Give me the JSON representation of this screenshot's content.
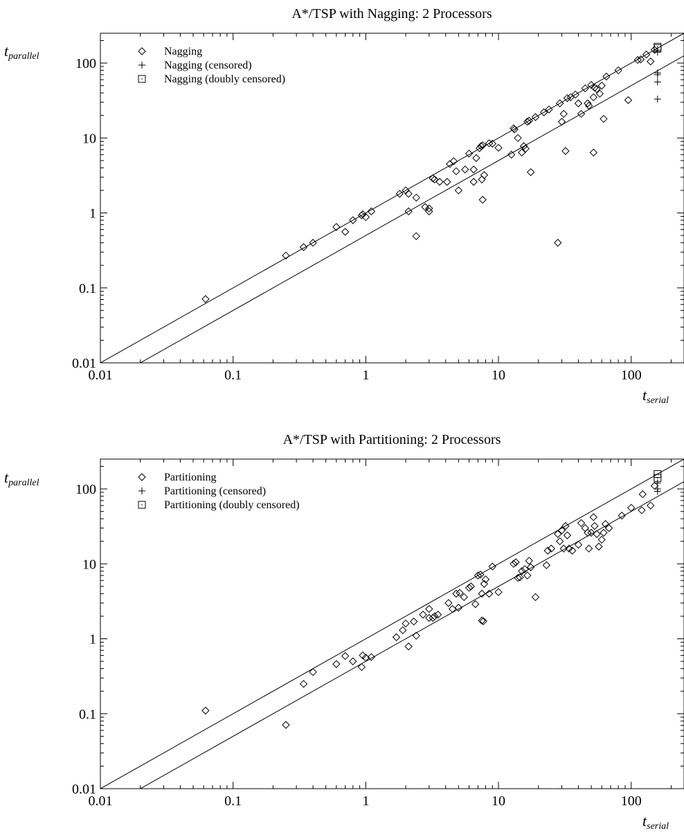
{
  "chart_data": [
    {
      "type": "scatter",
      "title": "A*/TSP with Nagging: 2 Processors",
      "xlabel": "t",
      "xlabel_sub": "serial",
      "ylabel": "t",
      "ylabel_sub": "parallel",
      "xscale": "log",
      "yscale": "log",
      "xlim": [
        0.01,
        250
      ],
      "ylim": [
        0.01,
        250
      ],
      "xticks": [
        "0.01",
        "0.1",
        "1",
        "10",
        "100"
      ],
      "yticks": [
        "0.01",
        "0.1",
        "1",
        "10",
        "100"
      ],
      "grid": false,
      "legend_position": "top-left",
      "reference_lines": [
        {
          "slope": 1,
          "intercept_factor": 1.0
        },
        {
          "slope": 1,
          "intercept_factor": 0.5
        }
      ],
      "series": [
        {
          "name": "Nagging",
          "marker": "diamond",
          "points": [
            [
              0.062,
              0.071
            ],
            [
              0.25,
              0.27
            ],
            [
              0.34,
              0.35
            ],
            [
              0.4,
              0.4
            ],
            [
              0.6,
              0.65
            ],
            [
              0.7,
              0.56
            ],
            [
              0.8,
              0.8
            ],
            [
              0.93,
              0.93
            ],
            [
              0.95,
              0.96
            ],
            [
              1.0,
              0.88
            ],
            [
              1.1,
              1.05
            ],
            [
              1.8,
              1.8
            ],
            [
              2.0,
              2.0
            ],
            [
              2.1,
              1.8
            ],
            [
              2.1,
              1.05
            ],
            [
              2.4,
              0.49
            ],
            [
              2.4,
              1.6
            ],
            [
              2.8,
              1.2
            ],
            [
              3.0,
              1.15
            ],
            [
              3.0,
              1.05
            ],
            [
              3.2,
              2.9
            ],
            [
              3.3,
              2.8
            ],
            [
              3.6,
              2.6
            ],
            [
              4.1,
              2.6
            ],
            [
              4.3,
              4.5
            ],
            [
              4.6,
              4.9
            ],
            [
              4.8,
              3.6
            ],
            [
              5.0,
              2.0
            ],
            [
              5.6,
              3.8
            ],
            [
              6.0,
              6.2
            ],
            [
              6.5,
              2.6
            ],
            [
              6.5,
              3.8
            ],
            [
              6.8,
              5.4
            ],
            [
              7.2,
              7.3
            ],
            [
              7.4,
              7.8
            ],
            [
              7.6,
              8.0
            ],
            [
              7.5,
              2.8
            ],
            [
              7.8,
              3.2
            ],
            [
              7.6,
              1.5
            ],
            [
              8.5,
              8.5
            ],
            [
              9.0,
              8.4
            ],
            [
              10.0,
              7.4
            ],
            [
              12.5,
              6.0
            ],
            [
              13.0,
              13.5
            ],
            [
              13.2,
              13.0
            ],
            [
              14.0,
              10.0
            ],
            [
              15.0,
              6.4
            ],
            [
              15.5,
              7.8
            ],
            [
              16.0,
              7.2
            ],
            [
              16.5,
              16.5
            ],
            [
              17.0,
              17.0
            ],
            [
              17.5,
              3.5
            ],
            [
              19.0,
              19.0
            ],
            [
              22.0,
              22.0
            ],
            [
              24.0,
              24.0
            ],
            [
              28.0,
              0.4
            ],
            [
              29.0,
              29.0
            ],
            [
              30.0,
              16.5
            ],
            [
              31.0,
              21.0
            ],
            [
              32.0,
              6.7
            ],
            [
              33.0,
              34.0
            ],
            [
              35.0,
              35.0
            ],
            [
              38.0,
              38.0
            ],
            [
              40.0,
              29.0
            ],
            [
              42.0,
              21.0
            ],
            [
              45.0,
              46.0
            ],
            [
              47.0,
              29.0
            ],
            [
              48.0,
              27.0
            ],
            [
              50.0,
              51.0
            ],
            [
              52.0,
              6.4
            ],
            [
              52.0,
              35.0
            ],
            [
              53.0,
              47.0
            ],
            [
              55.0,
              45.0
            ],
            [
              58.0,
              39.0
            ],
            [
              60.0,
              50.0
            ],
            [
              62.0,
              18.0
            ],
            [
              65.0,
              66.0
            ],
            [
              80.0,
              80.0
            ],
            [
              95.0,
              32.0
            ],
            [
              112.0,
              110.0
            ],
            [
              118.0,
              112.0
            ],
            [
              130.0,
              130.0
            ],
            [
              140.0,
              105.0
            ],
            [
              150.0,
              150.0
            ]
          ]
        },
        {
          "name": "Nagging (censored)",
          "marker": "plus",
          "points": [
            [
              158.0,
              140.0
            ],
            [
              158.0,
              74.0
            ],
            [
              158.0,
              70.0
            ],
            [
              158.0,
              56.0
            ],
            [
              158.0,
              33.0
            ]
          ]
        },
        {
          "name": "Nagging (doubly censored)",
          "marker": "square",
          "points": [
            [
              158.0,
              158.0
            ],
            [
              158.0,
              165.0
            ]
          ]
        }
      ]
    },
    {
      "type": "scatter",
      "title": "A*/TSP with Partitioning: 2 Processors",
      "xlabel": "t",
      "xlabel_sub": "serial",
      "ylabel": "t",
      "ylabel_sub": "parallel",
      "xscale": "log",
      "yscale": "log",
      "xlim": [
        0.01,
        250
      ],
      "ylim": [
        0.01,
        250
      ],
      "xticks": [
        "0.01",
        "0.1",
        "1",
        "10",
        "100"
      ],
      "yticks": [
        "0.01",
        "0.1",
        "1",
        "10",
        "100"
      ],
      "grid": false,
      "legend_position": "top-left",
      "reference_lines": [
        {
          "slope": 1,
          "intercept_factor": 1.0
        },
        {
          "slope": 1,
          "intercept_factor": 0.5
        }
      ],
      "series": [
        {
          "name": "Partitioning",
          "marker": "diamond",
          "points": [
            [
              0.062,
              0.11
            ],
            [
              0.25,
              0.071
            ],
            [
              0.34,
              0.25
            ],
            [
              0.4,
              0.36
            ],
            [
              0.6,
              0.46
            ],
            [
              0.7,
              0.59
            ],
            [
              0.8,
              0.5
            ],
            [
              0.93,
              0.42
            ],
            [
              0.95,
              0.6
            ],
            [
              1.0,
              0.56
            ],
            [
              1.1,
              0.57
            ],
            [
              1.7,
              1.05
            ],
            [
              1.9,
              1.3
            ],
            [
              2.0,
              1.6
            ],
            [
              2.1,
              0.79
            ],
            [
              2.3,
              1.7
            ],
            [
              2.4,
              1.1
            ],
            [
              2.7,
              2.1
            ],
            [
              3.0,
              1.9
            ],
            [
              3.0,
              2.5
            ],
            [
              3.2,
              1.9
            ],
            [
              3.3,
              2.0
            ],
            [
              3.5,
              2.1
            ],
            [
              4.2,
              3.0
            ],
            [
              4.5,
              2.5
            ],
            [
              4.8,
              4.0
            ],
            [
              5.0,
              2.6
            ],
            [
              5.1,
              4.1
            ],
            [
              5.5,
              3.6
            ],
            [
              6.0,
              4.8
            ],
            [
              6.2,
              5.0
            ],
            [
              6.7,
              2.9
            ],
            [
              7.0,
              7.0
            ],
            [
              7.3,
              7.2
            ],
            [
              7.5,
              4.0
            ],
            [
              7.5,
              1.75
            ],
            [
              7.7,
              1.72
            ],
            [
              7.8,
              5.4
            ],
            [
              8.0,
              6.2
            ],
            [
              8.5,
              4.0
            ],
            [
              9.0,
              9.2
            ],
            [
              10.0,
              4.2
            ],
            [
              13.0,
              10.0
            ],
            [
              13.5,
              10.5
            ],
            [
              14.0,
              6.5
            ],
            [
              14.5,
              6.6
            ],
            [
              15.0,
              8.0
            ],
            [
              15.8,
              8.5
            ],
            [
              16.5,
              7.0
            ],
            [
              17.0,
              11.0
            ],
            [
              17.5,
              9.0
            ],
            [
              19.0,
              3.6
            ],
            [
              23.0,
              9.6
            ],
            [
              23.5,
              15.0
            ],
            [
              25.0,
              16.0
            ],
            [
              28.0,
              25.0
            ],
            [
              29.0,
              20.0
            ],
            [
              30.0,
              28.0
            ],
            [
              31.0,
              16.0
            ],
            [
              32.0,
              32.0
            ],
            [
              33.0,
              24.0
            ],
            [
              34.0,
              16.0
            ],
            [
              36.0,
              15.0
            ],
            [
              40.0,
              18.0
            ],
            [
              42.0,
              35.0
            ],
            [
              45.0,
              30.0
            ],
            [
              47.0,
              26.0
            ],
            [
              48.0,
              16.0
            ],
            [
              50.0,
              26.0
            ],
            [
              52.0,
              42.0
            ],
            [
              53.0,
              32.0
            ],
            [
              55.0,
              25.0
            ],
            [
              57.0,
              17.0
            ],
            [
              60.0,
              21.0
            ],
            [
              62.0,
              26.0
            ],
            [
              64.0,
              34.0
            ],
            [
              68.0,
              30.0
            ],
            [
              85.0,
              44.0
            ],
            [
              100.0,
              56.0
            ],
            [
              120.0,
              52.0
            ],
            [
              122.0,
              85.0
            ],
            [
              140.0,
              60.0
            ],
            [
              150.0,
              110.0
            ]
          ]
        },
        {
          "name": "Partitioning (censored)",
          "marker": "plus",
          "points": [
            [
              158.0,
              120.0
            ],
            [
              158.0,
              100.0
            ],
            [
              158.0,
              93.0
            ]
          ]
        },
        {
          "name": "Partitioning (doubly censored)",
          "marker": "square",
          "points": [
            [
              158.0,
              158.0
            ],
            [
              158.0,
              140.0
            ]
          ]
        }
      ]
    }
  ]
}
